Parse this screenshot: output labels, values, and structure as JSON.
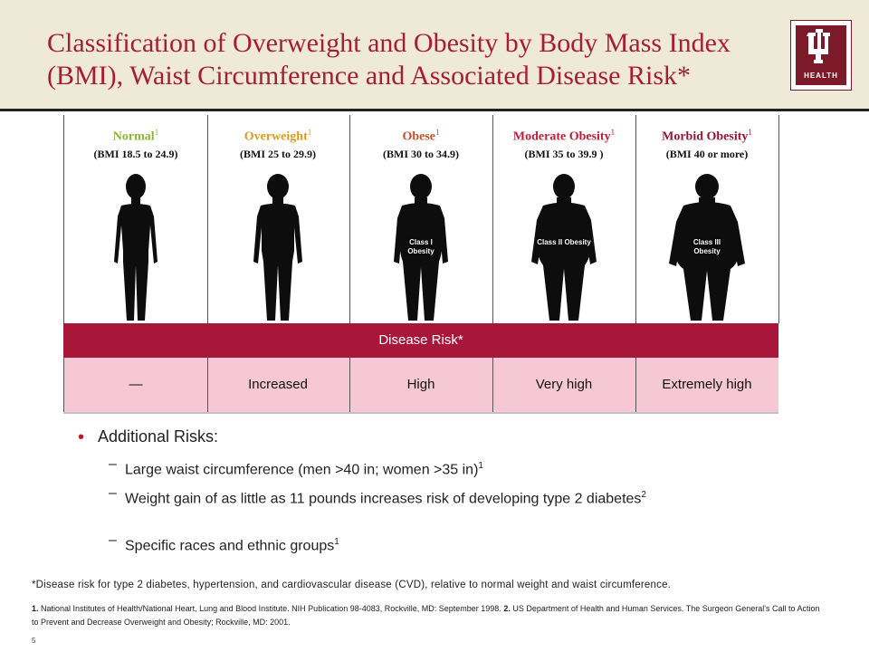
{
  "header": {
    "title": "Classification of Overweight and Obesity by Body Mass Index (BMI), Waist Circumference and Associated Disease Risk*",
    "logo_text": "HEALTH"
  },
  "categories": [
    {
      "title": "Normal",
      "sup": "1",
      "range": "(BMI 18.5 to 24.9)",
      "color": "#8db33a",
      "class_label": ""
    },
    {
      "title": "Overweight",
      "sup": "1",
      "range": "(BMI 25 to 29.9)",
      "color": "#d99a1e",
      "class_label": ""
    },
    {
      "title": "Obese",
      "sup": "1",
      "range": "(BMI 30 to 34.9)",
      "color": "#c1512a",
      "class_label": "Class I Obesity"
    },
    {
      "title": "Moderate Obesity",
      "sup": "1",
      "range": "(BMI 35 to 39.9 )",
      "color": "#b5223b",
      "class_label": "Class II Obesity"
    },
    {
      "title": "Morbid Obesity",
      "sup": "1",
      "range": "(BMI 40 or more)",
      "color": "#8f1834",
      "class_label": "Class III Obesity"
    }
  ],
  "disease_risk": {
    "heading": "Disease Risk*",
    "values": [
      "—",
      "Increased",
      "High",
      "Very high",
      "Extremely high"
    ]
  },
  "additional_risks": {
    "heading": "Additional Risks:",
    "items": [
      {
        "text": "Large waist circumference (men >40 in; women >35 in)",
        "sup": "1"
      },
      {
        "text": "Weight gain of as little as 11 pounds increases risk of developing type 2 diabetes",
        "sup": "2"
      },
      {
        "text": "Specific races and ethnic groups",
        "sup": "1"
      }
    ]
  },
  "footnote": "*Disease risk for type 2 diabetes, hypertension, and cardiovascular disease (CVD), relative to normal weight and waist circumference.",
  "references": {
    "ref1_num": "1.",
    "ref1_text": " National Institutes of Health/National Heart, Lung and Blood Institute. NIH Publication 98-4083, Rockville, MD: September 1998. ",
    "ref2_num": "2.",
    "ref2_text": " US Department of Health and Human Services. The Surgeon General's Call to Action to Prevent and Decrease Overweight and Obesity; Rockville, MD: 2001."
  },
  "page_number": "5"
}
